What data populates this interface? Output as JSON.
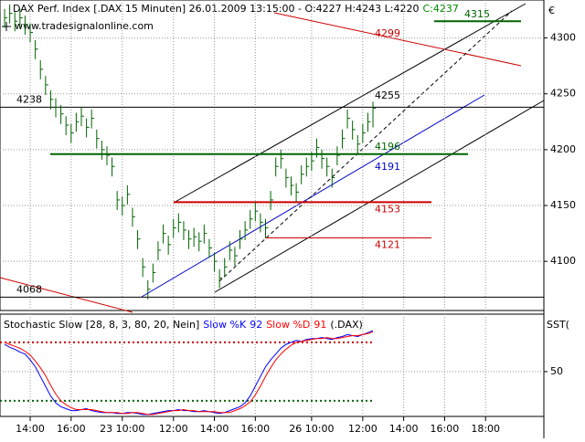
{
  "chart_data": [
    {
      "type": "ohlc",
      "title": "DAX Perf. Index [.DAX  15 Minuten] 26.01.2009 13:15:00 - O:4227 H:4243 L:4220",
      "close_label": "C:4237",
      "watermark": "www.tradesignalonline.com",
      "axis_label": "€",
      "color": "#006400",
      "high": [
        4326,
        4330,
        4323,
        4326,
        4320,
        4313,
        4298,
        4280,
        4266,
        4253,
        4246,
        4240,
        4230,
        4223,
        4233,
        4238,
        4228,
        4236,
        4218,
        4208,
        4203,
        4193,
        4163,
        4158,
        4168,
        4148,
        4128,
        4103,
        4083,
        4098,
        4118,
        4133,
        4123,
        4138,
        4143,
        4136,
        4128,
        4130,
        4126,
        4133,
        4120,
        4108,
        4093,
        4103,
        4118,
        4113,
        4128,
        4136,
        4146,
        4153,
        4143,
        4138,
        4163,
        4193,
        4200,
        4183,
        4176,
        4170,
        4186,
        4193,
        4198,
        4210,
        4200,
        4193,
        4183,
        4203,
        4218,
        4236,
        4226,
        4213,
        4223,
        4233,
        4243
      ],
      "low": [
        4309,
        4313,
        4306,
        4309,
        4303,
        4296,
        4281,
        4263,
        4249,
        4236,
        4229,
        4223,
        4213,
        4206,
        4216,
        4221,
        4211,
        4219,
        4201,
        4191,
        4186,
        4176,
        4146,
        4141,
        4151,
        4131,
        4111,
        4086,
        4066,
        4081,
        4101,
        4116,
        4106,
        4121,
        4126,
        4119,
        4111,
        4113,
        4109,
        4116,
        4103,
        4091,
        4076,
        4086,
        4101,
        4096,
        4111,
        4119,
        4129,
        4136,
        4126,
        4121,
        4146,
        4176,
        4183,
        4166,
        4159,
        4153,
        4169,
        4176,
        4181,
        4193,
        4183,
        4176,
        4166,
        4186,
        4201,
        4219,
        4209,
        4196,
        4206,
        4216,
        4220
      ],
      "close": [
        4318,
        4322,
        4315,
        4318,
        4312,
        4305,
        4290,
        4272,
        4258,
        4245,
        4238,
        4232,
        4222,
        4215,
        4225,
        4230,
        4220,
        4228,
        4210,
        4200,
        4195,
        4185,
        4155,
        4150,
        4160,
        4140,
        4120,
        4095,
        4075,
        4090,
        4110,
        4125,
        4115,
        4130,
        4135,
        4128,
        4120,
        4122,
        4118,
        4125,
        4112,
        4100,
        4085,
        4095,
        4110,
        4105,
        4120,
        4128,
        4138,
        4145,
        4135,
        4130,
        4155,
        4185,
        4192,
        4175,
        4168,
        4162,
        4178,
        4185,
        4190,
        4202,
        4192,
        4185,
        4175,
        4195,
        4210,
        4228,
        4218,
        4205,
        4215,
        4225,
        4237
      ],
      "xlim": [
        -0.9,
        105.4
      ],
      "xticks": [
        {
          "value": 5,
          "label": "14:00"
        },
        {
          "value": 13,
          "label": "16:00"
        },
        {
          "value": 23,
          "label": "23 10:00"
        },
        {
          "value": 33,
          "label": "12:00"
        },
        {
          "value": 41,
          "label": "14:00"
        },
        {
          "value": 49,
          "label": "16:00"
        },
        {
          "value": 60,
          "label": "26 10:00"
        },
        {
          "value": 70,
          "label": "12:00"
        },
        {
          "value": 78,
          "label": "14:00"
        },
        {
          "value": 86,
          "label": "16:00"
        },
        {
          "value": 94,
          "label": "18:00"
        }
      ],
      "ylim": [
        4056,
        4334
      ],
      "yticks": [
        4100,
        4150,
        4200,
        4250,
        4300
      ],
      "grid": true,
      "levels": [
        {
          "value": 4238,
          "color": "#000000"
        },
        {
          "value": 4068,
          "color": "#000000"
        },
        {
          "value": 4196,
          "color": "#006400"
        },
        {
          "value": 4153,
          "color": "#cc0000"
        },
        {
          "value": 4121,
          "color": "#cc0000"
        },
        {
          "value": 4315,
          "color": "#006400"
        }
      ],
      "trend_labels": [
        {
          "value": 4299,
          "color": "#cc0000"
        },
        {
          "value": 4255,
          "color": "#000000"
        },
        {
          "value": 4191,
          "color": "#0000cc"
        }
      ]
    },
    {
      "type": "line",
      "title": "Stochastic Slow [28, 8, 3, 80, 20, Nein]",
      "suffix": "(.DAX)",
      "axis_label": "SST(",
      "series": [
        {
          "name": "Slow %K",
          "color": "#0000ff",
          "values": [
            78,
            75,
            73,
            70,
            68,
            62,
            55,
            45,
            35,
            25,
            18,
            14,
            12,
            10,
            10,
            11,
            12,
            10,
            9,
            8,
            8,
            8,
            7,
            7,
            8,
            8,
            7,
            6,
            6,
            7,
            8,
            9,
            10,
            10,
            11,
            10,
            10,
            9,
            9,
            10,
            9,
            8,
            7,
            8,
            10,
            12,
            14,
            18,
            25,
            35,
            45,
            55,
            62,
            68,
            74,
            78,
            80,
            82,
            81,
            83,
            84,
            84,
            85,
            84,
            83,
            85,
            86,
            88,
            87,
            86,
            88,
            90,
            92
          ]
        },
        {
          "name": "Slow %D",
          "color": "#ff0000",
          "values": [
            80,
            78,
            76,
            74,
            71,
            67,
            61,
            54,
            46,
            36,
            27,
            20,
            16,
            13,
            11,
            11,
            11,
            11,
            10,
            9,
            8,
            8,
            8,
            7,
            7,
            8,
            8,
            7,
            6,
            6,
            7,
            8,
            9,
            10,
            10,
            11,
            10,
            10,
            9,
            9,
            9,
            9,
            8,
            8,
            8,
            10,
            12,
            15,
            19,
            26,
            35,
            45,
            54,
            62,
            68,
            73,
            77,
            80,
            81,
            82,
            83,
            84,
            84,
            85,
            84,
            84,
            85,
            86,
            87,
            87,
            88,
            89,
            91
          ]
        }
      ],
      "ylim": [
        4,
        109
      ],
      "yticks": [
        50
      ],
      "levels": [
        {
          "value": 80,
          "color": "#cc0000"
        },
        {
          "value": 20,
          "color": "#006400"
        }
      ]
    }
  ]
}
